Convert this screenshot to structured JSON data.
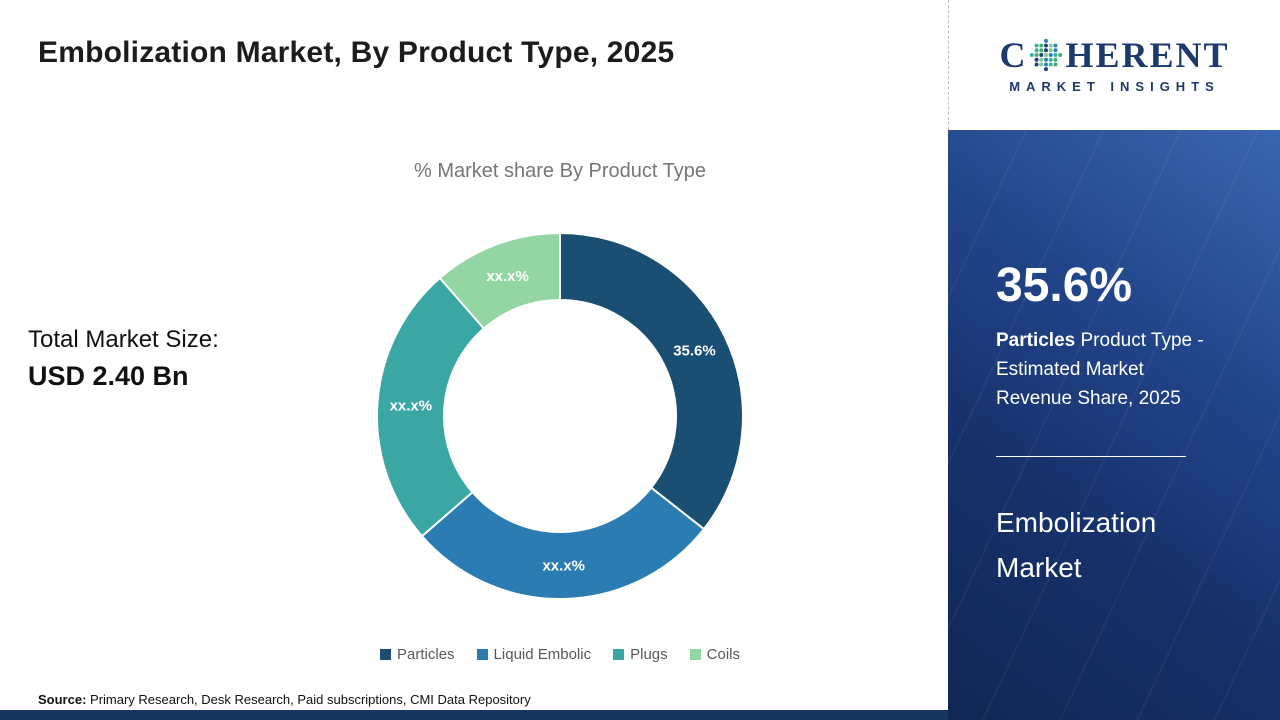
{
  "header": {
    "title": "Embolization Market, By Product Type, 2025"
  },
  "chart_data": {
    "type": "donut",
    "title": "% Market share By Product Type",
    "legend_position": "bottom",
    "segments": [
      {
        "label": "Particles",
        "value": 35.6,
        "display": "35.6%",
        "color": "#1a4e72"
      },
      {
        "label": "Liquid Embolic",
        "value": 28.0,
        "display": "xx.x%",
        "color": "#2b7cb3"
      },
      {
        "label": "Plugs",
        "value": 25.0,
        "display": "xx.x%",
        "color": "#3aa7a4"
      },
      {
        "label": "Coils",
        "value": 11.4,
        "display": "xx.x%",
        "color": "#93d6a4"
      }
    ]
  },
  "market_size": {
    "label": "Total Market Size:",
    "value": "USD 2.40 Bn"
  },
  "source": {
    "label": "Source:",
    "text": " Primary Research, Desk Research, Paid subscriptions, CMI Data Repository"
  },
  "sidebar": {
    "logo": {
      "part1": "C",
      "part2": "HERENT",
      "subtitle": "MARKET INSIGHTS",
      "globe_dot_colors": [
        "#2b7fc2",
        "#35b1a8",
        "#3fae6e",
        "#1d3f7a",
        "#7fc98f"
      ]
    },
    "stat_value": "35.6%",
    "stat_label_bold": "Particles",
    "stat_label_rest": " Product Type - Estimated Market Revenue Share, 2025",
    "market_name": "Embolization Market"
  }
}
